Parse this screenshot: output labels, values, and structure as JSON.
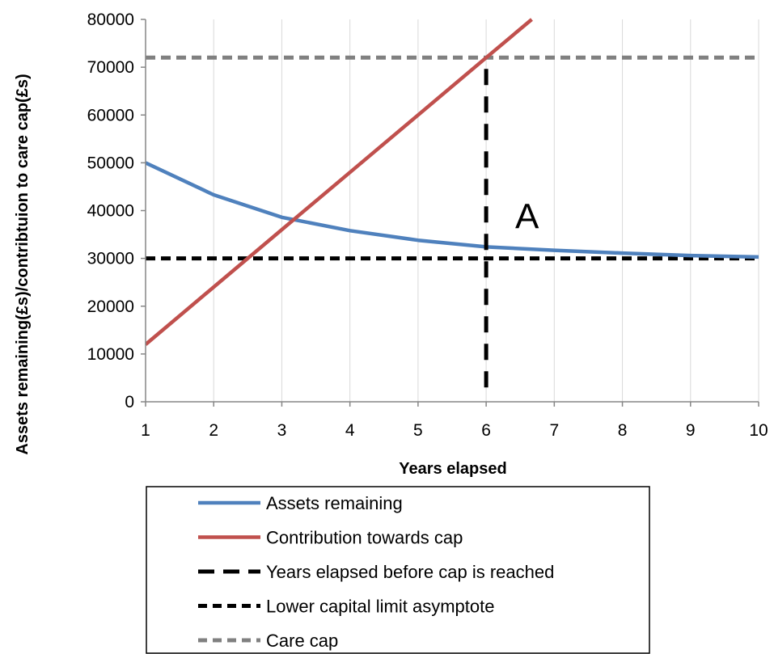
{
  "chart_data": {
    "type": "line",
    "title": "",
    "xlabel": "Years elapsed",
    "ylabel": "Assets remaining(£s)/contribtuion to care cap(£s)",
    "x": [
      1,
      2,
      3,
      4,
      5,
      6,
      7,
      8,
      9,
      10
    ],
    "xlim": [
      1,
      10
    ],
    "ylim": [
      0,
      80000
    ],
    "xticks": [
      "1",
      "2",
      "3",
      "4",
      "5",
      "6",
      "7",
      "8",
      "9",
      "10"
    ],
    "yticks": [
      "0",
      "10000",
      "20000",
      "30000",
      "40000",
      "50000",
      "60000",
      "70000",
      "80000"
    ],
    "grid": "vertical",
    "legend_position": "bottom",
    "series": [
      {
        "name": "Assets remaining",
        "color": "#4f81bd",
        "style": "solid",
        "points": [
          [
            1,
            50000
          ],
          [
            2,
            43300
          ],
          [
            3,
            38600
          ],
          [
            4,
            35800
          ],
          [
            5,
            33800
          ],
          [
            6,
            32400
          ],
          [
            7,
            31700
          ],
          [
            8,
            31100
          ],
          [
            9,
            30600
          ],
          [
            10,
            30300
          ]
        ]
      },
      {
        "name": "Contribution towards cap",
        "color": "#c0504d",
        "style": "solid",
        "points": [
          [
            1,
            12000
          ],
          [
            2,
            24000
          ],
          [
            3,
            36000
          ],
          [
            4,
            48000
          ],
          [
            5,
            60000
          ],
          [
            6,
            72000
          ],
          [
            6.67,
            80000
          ]
        ]
      },
      {
        "name": "Years elapsed before cap is reached",
        "color": "#000000",
        "style": "long-dash",
        "points": [
          [
            6,
            3000
          ],
          [
            6,
            72000
          ]
        ]
      },
      {
        "name": "Lower capital limit asymptote",
        "color": "#000000",
        "style": "dash",
        "points": [
          [
            1,
            30000
          ],
          [
            10,
            30000
          ]
        ]
      },
      {
        "name": "Care cap",
        "color": "#808080",
        "style": "dash",
        "points": [
          [
            1,
            72000
          ],
          [
            10,
            72000
          ]
        ]
      }
    ],
    "annotations": [
      {
        "text": "A",
        "x": 6.6,
        "y": 39000
      }
    ]
  }
}
